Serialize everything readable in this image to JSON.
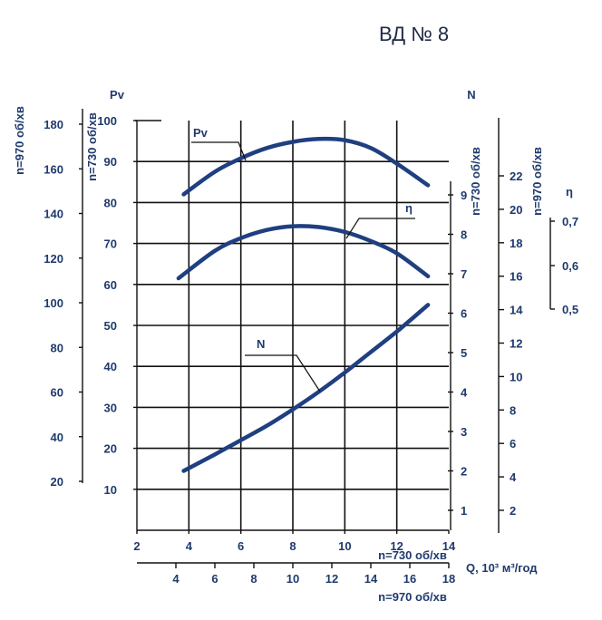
{
  "title": "ВД № 8",
  "chart_data": {
    "type": "line",
    "title": "ВД № 8",
    "x_axes": [
      {
        "label": "n=730 об/хв",
        "range": [
          2,
          14
        ],
        "ticks": [
          "2",
          "4",
          "6",
          "8",
          "10",
          "12",
          "14"
        ]
      },
      {
        "label": "n=970 об/хв",
        "range": [
          2,
          18
        ],
        "ticks": [
          "4",
          "6",
          "8",
          "10",
          "12",
          "14",
          "16",
          "18"
        ]
      }
    ],
    "x_quantity_label": "Q, 10³ м³/год",
    "y_left_axes": [
      {
        "label": "Pv",
        "sub": "n=730 об/хв",
        "range": [
          0,
          100
        ],
        "ticks": [
          "10",
          "20",
          "30",
          "40",
          "50",
          "60",
          "70",
          "80",
          "90",
          "100"
        ]
      },
      {
        "label": "n=970 об/хв",
        "range": [
          0,
          180
        ],
        "ticks": [
          "20",
          "40",
          "60",
          "80",
          "100",
          "120",
          "140",
          "160",
          "180"
        ]
      }
    ],
    "y_right_axes": [
      {
        "label": "N",
        "sub": "n=730 об/хв",
        "range": [
          0,
          10
        ],
        "ticks": [
          "1",
          "2",
          "3",
          "4",
          "5",
          "6",
          "7",
          "8",
          "9"
        ]
      },
      {
        "label": "n=970 об/хв",
        "range": [
          0,
          24
        ],
        "ticks": [
          "2",
          "4",
          "6",
          "8",
          "10",
          "12",
          "14",
          "16",
          "18",
          "20",
          "22"
        ]
      },
      {
        "label": "η",
        "ticks": [
          "0,5",
          "0,6",
          "0,7"
        ]
      }
    ],
    "series": [
      {
        "name": "Pv",
        "x": [
          3.8,
          5,
          6,
          7,
          8,
          9,
          10,
          11,
          12,
          13.2
        ],
        "y": [
          82,
          87.5,
          90.8,
          93.3,
          94.8,
          95.5,
          95.2,
          93.3,
          89.5,
          84.2
        ]
      },
      {
        "name": "η",
        "x": [
          3.6,
          5,
          6,
          7,
          8,
          9,
          10,
          11,
          12,
          13.2
        ],
        "y": [
          61.5,
          68.2,
          71.3,
          73.3,
          74.2,
          74,
          72.8,
          70.6,
          67.6,
          62
        ]
      },
      {
        "name": "N",
        "x": [
          3.8,
          5,
          6,
          7,
          8,
          9,
          10,
          11,
          12,
          13.2
        ],
        "y": [
          14.5,
          18.5,
          22,
          25.5,
          29.5,
          33.8,
          38.5,
          43.5,
          48.5,
          55
        ]
      }
    ],
    "grid": true
  }
}
